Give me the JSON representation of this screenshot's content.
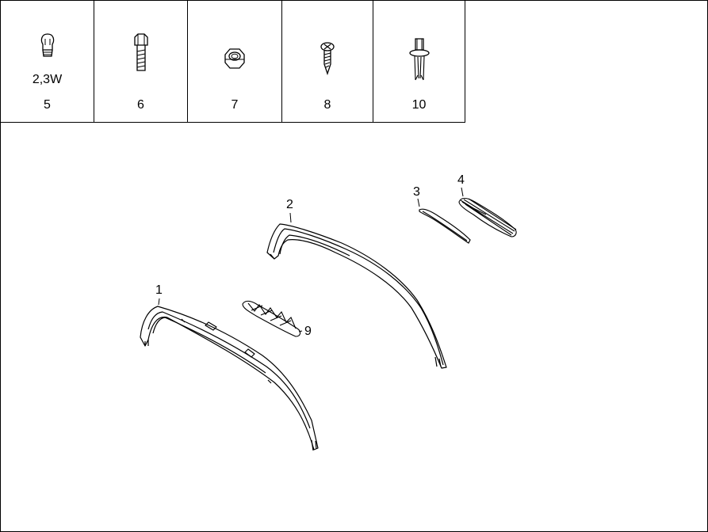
{
  "parts_table": [
    {
      "number": "5",
      "spec": "2,3W",
      "icon": "bulb-icon"
    },
    {
      "number": "6",
      "spec": "",
      "icon": "bolt-icon"
    },
    {
      "number": "7",
      "spec": "",
      "icon": "nut-icon"
    },
    {
      "number": "8",
      "spec": "",
      "icon": "screw-icon"
    },
    {
      "number": "10",
      "spec": "",
      "icon": "clip-icon"
    }
  ],
  "callouts": {
    "c1": "1",
    "c2": "2",
    "c3": "3",
    "c4": "4",
    "c9": "9"
  }
}
